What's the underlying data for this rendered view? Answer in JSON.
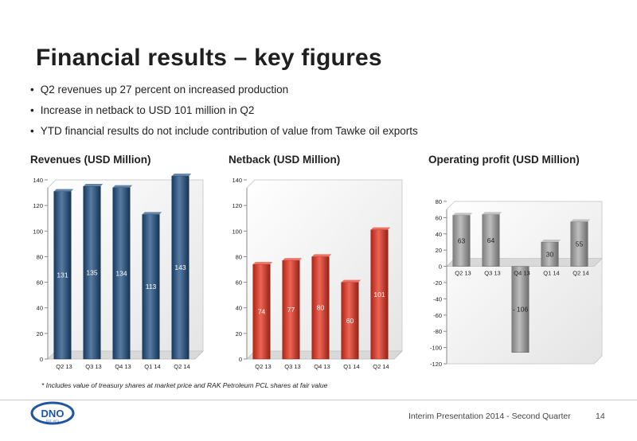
{
  "slide": {
    "title": "Financial results – key figures",
    "bullets": [
      "Q2 revenues up 27 percent on increased production",
      "Increase in netback to USD 101 million in Q2",
      "YTD financial results do not include contribution of value from Tawke oil exports"
    ],
    "footnote": "* Includes value of treasury shares at market price and RAK Petroleum PCL shares at fair value",
    "footer_text": "Interim Presentation 2014 - Second Quarter",
    "page_number": "14",
    "logo_text": "DNO",
    "logo_subtext": "EST. 1971"
  },
  "colors": {
    "revenues_bar": "#1f4f82",
    "netback_bar": "#e8321e",
    "operating_bar": "#a8a8a8",
    "logo_blue": "#1e56a0"
  },
  "chart_data": [
    {
      "type": "bar",
      "title": "Revenues (USD Million)",
      "categories": [
        "Q2 13",
        "Q3 13",
        "Q4 13",
        "Q1 14",
        "Q2 14"
      ],
      "values": [
        131,
        135,
        134,
        113,
        143
      ],
      "data_labels": [
        "131",
        "135",
        "134",
        "113",
        "143"
      ],
      "ylim": [
        0,
        140
      ],
      "yticks": [
        0,
        20,
        40,
        60,
        80,
        100,
        120,
        140
      ],
      "grid": false,
      "label_position": "center"
    },
    {
      "type": "bar",
      "title": "Netback (USD Million)",
      "categories": [
        "Q2 13",
        "Q3 13",
        "Q4 13",
        "Q1 14",
        "Q2 14"
      ],
      "values": [
        74,
        77,
        80,
        60,
        101
      ],
      "data_labels": [
        "74",
        "77",
        "80",
        "60",
        "101"
      ],
      "ylim": [
        0,
        140
      ],
      "yticks": [
        0,
        20,
        40,
        60,
        80,
        100,
        120,
        140
      ],
      "grid": false,
      "label_position": "center"
    },
    {
      "type": "bar",
      "title": "Operating profit (USD Million)",
      "categories": [
        "Q2 13",
        "Q3 13",
        "Q4 13",
        "Q1 14",
        "Q2 14"
      ],
      "values": [
        63,
        64,
        -106,
        30,
        55
      ],
      "data_labels": [
        "63",
        "64",
        "- 106",
        "30",
        "55"
      ],
      "ylim": [
        -120,
        80
      ],
      "yticks": [
        -120,
        -100,
        -80,
        -60,
        -40,
        -20,
        0,
        20,
        40,
        60,
        80
      ],
      "grid": false,
      "label_position": "center"
    }
  ]
}
